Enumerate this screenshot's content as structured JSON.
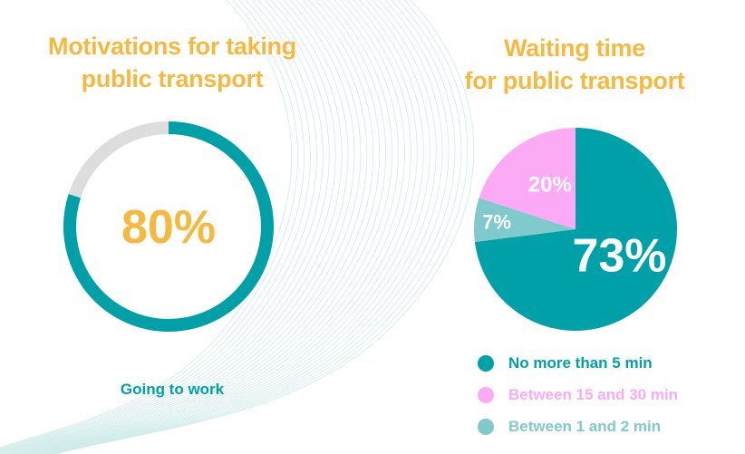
{
  "colors": {
    "title": "#f5b940",
    "teal": "#00a0a8",
    "pink": "#fcaaf6",
    "light_teal": "#80c9cc",
    "track": "#dddddd",
    "lines": "#bfe4e2"
  },
  "left_panel": {
    "title_line1": "Motivations for taking",
    "title_line2": "public transport",
    "center_value": "80%",
    "caption": "Going to work"
  },
  "right_panel": {
    "title_line1": "Waiting time",
    "title_line2": "for public transport"
  },
  "chart_data": [
    {
      "type": "pie",
      "variant": "donut",
      "title": "Motivations for taking public transport",
      "categories": [
        "Going to work"
      ],
      "values": [
        80
      ],
      "unit": "%",
      "data_labels": [
        "80%"
      ]
    },
    {
      "type": "pie",
      "title": "Waiting time for public transport",
      "categories": [
        "No more than 5 min",
        "Between 1 and 2 min",
        "Between 15 and 30 min"
      ],
      "values": [
        73,
        7,
        20
      ],
      "unit": "%",
      "data_labels": [
        "73%",
        "7%",
        "20%"
      ],
      "legend": {
        "position": "bottom",
        "items": [
          {
            "label": "No more than 5 min",
            "color": "#00a0a8"
          },
          {
            "label": "Between 15 and 30 min",
            "color": "#fcaaf6"
          },
          {
            "label": "Between 1 and 2 min",
            "color": "#80c9cc"
          }
        ]
      }
    }
  ]
}
